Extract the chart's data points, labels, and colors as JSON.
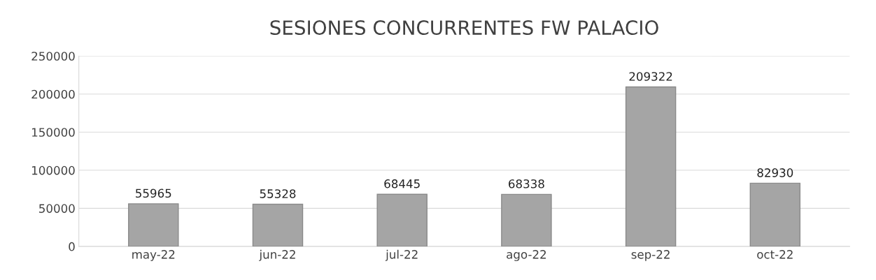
{
  "chart_data": {
    "type": "bar",
    "title": "SESIONES CONCURRENTES FW PALACIO",
    "categories": [
      "may-22",
      "jun-22",
      "jul-22",
      "ago-22",
      "sep-22",
      "oct-22"
    ],
    "values": [
      55965,
      55328,
      68445,
      68338,
      209322,
      82930
    ],
    "color": "#a5a5a5",
    "ylim": [
      0,
      250000
    ],
    "yticks": [
      0,
      50000,
      100000,
      150000,
      200000,
      250000
    ],
    "grid": "y",
    "data_labels": true
  }
}
